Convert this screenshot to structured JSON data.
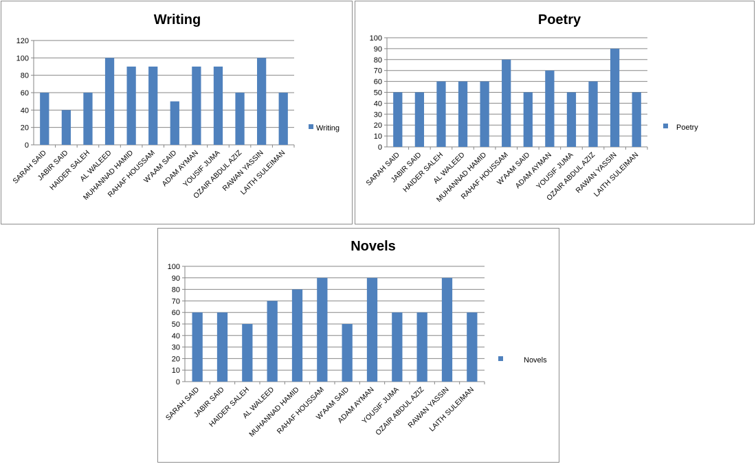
{
  "colors": {
    "bar": "#4f81bd",
    "grid": "#868686",
    "axis": "#868686",
    "text": "#000000"
  },
  "chart_data": [
    {
      "type": "bar",
      "title": "Writing",
      "categories": [
        "SARAH SAID",
        "JABIR  SAID",
        "HAIDER SALEH",
        "AL WALEED",
        "MUHANNAD HAMID",
        "RAHAF HOUSSAM",
        "W'AAM SAID",
        "ADAM AYMAN",
        "YOUSIF JUMA",
        "OZAIR ABDUL  AZIZ",
        "RAWAN YASSIN",
        "LAITH SULEIMAN"
      ],
      "series": [
        {
          "name": "Writing",
          "values": [
            60,
            40,
            60,
            100,
            90,
            90,
            50,
            90,
            90,
            60,
            100,
            60
          ]
        }
      ],
      "ylim": [
        0,
        120
      ],
      "yticks": [
        "0",
        "20",
        "40",
        "60",
        "80",
        "100",
        "120"
      ],
      "grid": true,
      "legend": "right"
    },
    {
      "type": "bar",
      "title": "Poetry",
      "categories": [
        "SARAH SAID",
        "JABIR  SAID",
        "HAIDER SALEH",
        "AL WALEED",
        "MUHANNAD HAMID",
        "RAHAF HOUSSAM",
        "W'AAM SAID",
        "ADAM AYMAN",
        "YOUSIF JUMA",
        "OZAIR ABDUL  AZIZ",
        "RAWAN YASSIN",
        "LAITH SULEIMAN"
      ],
      "series": [
        {
          "name": "Poetry",
          "values": [
            50,
            50,
            60,
            60,
            60,
            80,
            50,
            70,
            50,
            60,
            90,
            50
          ]
        }
      ],
      "ylim": [
        0,
        100
      ],
      "yticks": [
        "0",
        "10",
        "20",
        "30",
        "40",
        "50",
        "60",
        "70",
        "80",
        "90",
        "100"
      ],
      "grid": true,
      "legend": "right"
    },
    {
      "type": "bar",
      "title": "Novels",
      "categories": [
        "SARAH SAID",
        "JABIR  SAID",
        "HAIDER SALEH",
        "AL WALEED",
        "MUHANNAD HAMID",
        "RAHAF HOUSSAM",
        "W'AAM SAID",
        "ADAM AYMAN",
        "YOUSIF JUMA",
        "OZAIR ABDUL  AZIZ",
        "RAWAN YASSIN",
        "LAITH SULEIMAN"
      ],
      "series": [
        {
          "name": "Novels",
          "values": [
            60,
            60,
            50,
            70,
            80,
            90,
            50,
            90,
            60,
            60,
            90,
            60
          ]
        }
      ],
      "ylim": [
        0,
        100
      ],
      "yticks": [
        "0",
        "10",
        "20",
        "30",
        "40",
        "50",
        "60",
        "70",
        "80",
        "90",
        "100"
      ],
      "grid": true,
      "legend": "right"
    }
  ]
}
